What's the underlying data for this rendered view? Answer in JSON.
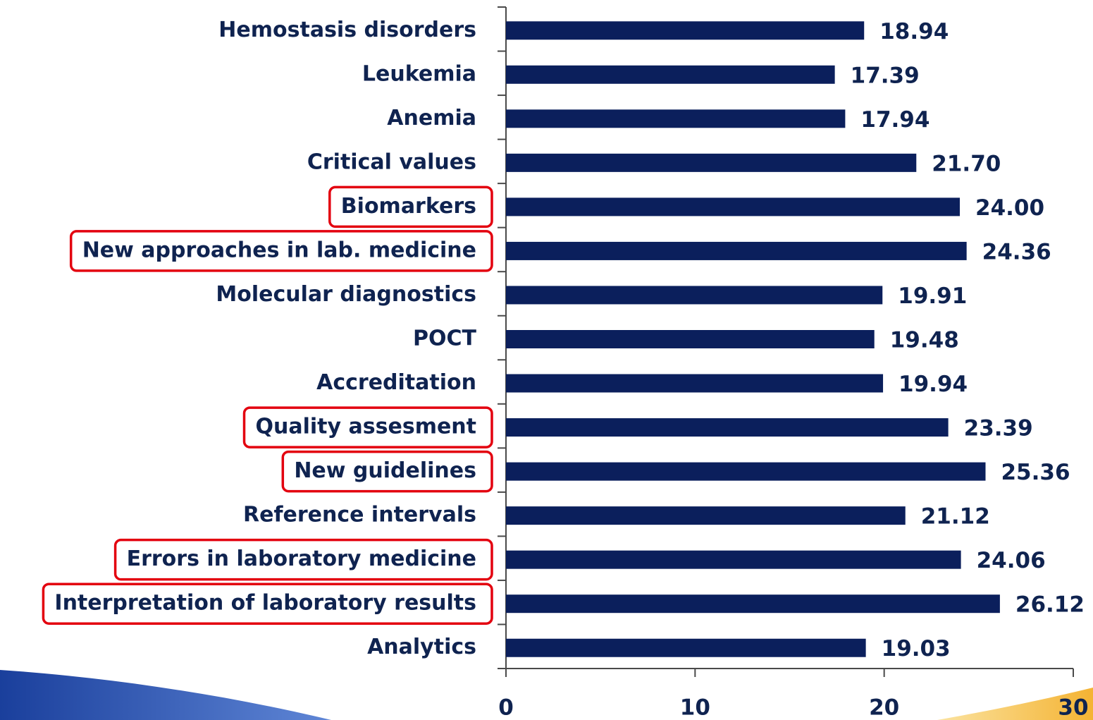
{
  "chart_data": {
    "type": "barh",
    "categories": [
      "Hemostasis disorders",
      "Leukemia",
      "Anemia",
      "Critical values",
      "Biomarkers",
      "New approaches in lab. medicine",
      "Molecular diagnostics",
      "POCT",
      "Accreditation",
      "Quality assesment",
      "New guidelines",
      "Reference intervals",
      "Errors in laboratory medicine",
      "Interpretation of laboratory results",
      "Analytics"
    ],
    "values": [
      18.94,
      17.39,
      17.94,
      21.7,
      24.0,
      24.36,
      19.91,
      19.48,
      19.94,
      23.39,
      25.36,
      21.12,
      24.06,
      26.12,
      19.03
    ],
    "value_labels": [
      "18.94",
      "17.39",
      "17.94",
      "21.70",
      "24.00",
      "24.36",
      "19.91",
      "19.48",
      "19.94",
      "23.39",
      "25.36",
      "21.12",
      "24.06",
      "26.12",
      "19.03"
    ],
    "highlighted": [
      4,
      5,
      9,
      10,
      12,
      13
    ],
    "highlight_color": "#e3000f",
    "color": "#0b1f5c",
    "xlim": [
      0,
      30
    ],
    "xticks": [
      0,
      10,
      20,
      30
    ]
  }
}
